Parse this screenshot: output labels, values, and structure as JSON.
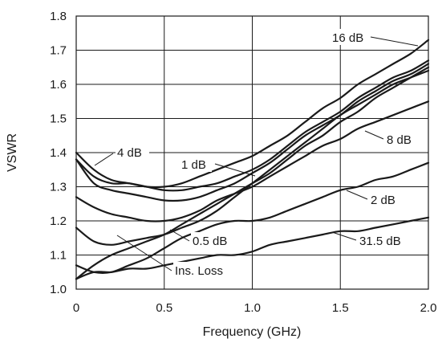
{
  "chart_data": {
    "type": "line",
    "xlabel": "Frequency (GHz)",
    "ylabel": "VSWR",
    "xlim": [
      0,
      2.0
    ],
    "ylim": [
      1.0,
      1.8
    ],
    "grid": true,
    "x_ticks": [
      "0",
      "0.5",
      "1.0",
      "1.5",
      "2.0"
    ],
    "y_ticks": [
      "1.0",
      "1.1",
      "1.2",
      "1.3",
      "1.4",
      "1.5",
      "1.6",
      "1.7",
      "1.8"
    ],
    "x": [
      0,
      0.1,
      0.2,
      0.3,
      0.4,
      0.5,
      0.6,
      0.7,
      0.8,
      0.9,
      1.0,
      1.1,
      1.2,
      1.3,
      1.4,
      1.5,
      1.6,
      1.7,
      1.8,
      1.9,
      2.0
    ],
    "series": [
      {
        "name": "16 dB",
        "values": [
          1.4,
          1.35,
          1.32,
          1.31,
          1.3,
          1.3,
          1.31,
          1.33,
          1.35,
          1.37,
          1.39,
          1.42,
          1.45,
          1.49,
          1.53,
          1.56,
          1.6,
          1.63,
          1.66,
          1.69,
          1.73
        ]
      },
      {
        "name": "4 dB",
        "values": [
          1.38,
          1.33,
          1.31,
          1.31,
          1.3,
          1.29,
          1.29,
          1.3,
          1.31,
          1.33,
          1.35,
          1.38,
          1.42,
          1.46,
          1.49,
          1.52,
          1.56,
          1.59,
          1.62,
          1.64,
          1.67
        ]
      },
      {
        "name": "1 dB",
        "values": [
          1.38,
          1.31,
          1.29,
          1.28,
          1.27,
          1.26,
          1.26,
          1.27,
          1.29,
          1.31,
          1.34,
          1.37,
          1.41,
          1.45,
          1.48,
          1.51,
          1.55,
          1.58,
          1.61,
          1.63,
          1.66
        ]
      },
      {
        "name": "8 dB",
        "values": [
          1.27,
          1.24,
          1.22,
          1.21,
          1.2,
          1.2,
          1.21,
          1.23,
          1.26,
          1.28,
          1.3,
          1.33,
          1.36,
          1.39,
          1.42,
          1.44,
          1.47,
          1.49,
          1.51,
          1.53,
          1.55
        ]
      },
      {
        "name": "0.5 dB",
        "values": [
          1.18,
          1.14,
          1.13,
          1.14,
          1.15,
          1.16,
          1.18,
          1.2,
          1.23,
          1.27,
          1.31,
          1.35,
          1.39,
          1.43,
          1.47,
          1.51,
          1.54,
          1.57,
          1.6,
          1.62,
          1.64
        ]
      },
      {
        "name": "Ins. Loss",
        "values": [
          1.03,
          1.07,
          1.1,
          1.12,
          1.14,
          1.16,
          1.19,
          1.22,
          1.25,
          1.28,
          1.31,
          1.34,
          1.38,
          1.42,
          1.45,
          1.49,
          1.52,
          1.56,
          1.59,
          1.62,
          1.65
        ]
      },
      {
        "name": "2 dB",
        "values": [
          1.07,
          1.05,
          1.05,
          1.07,
          1.09,
          1.12,
          1.15,
          1.17,
          1.19,
          1.2,
          1.2,
          1.21,
          1.23,
          1.25,
          1.27,
          1.29,
          1.3,
          1.32,
          1.33,
          1.35,
          1.37
        ]
      },
      {
        "name": "31.5 dB",
        "values": [
          1.03,
          1.05,
          1.05,
          1.06,
          1.06,
          1.07,
          1.08,
          1.09,
          1.1,
          1.1,
          1.11,
          1.13,
          1.14,
          1.15,
          1.16,
          1.17,
          1.17,
          1.18,
          1.19,
          1.2,
          1.21
        ]
      }
    ]
  }
}
